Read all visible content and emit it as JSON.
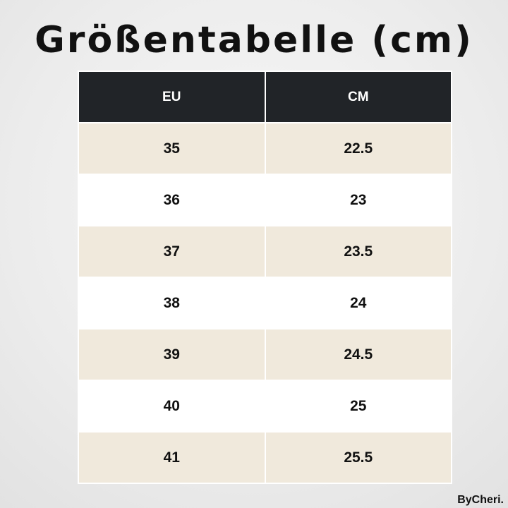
{
  "header": {
    "title": "Größentabelle (cm)"
  },
  "table": {
    "columns": [
      "EU",
      "CM"
    ],
    "rows": [
      [
        "35",
        "22.5"
      ],
      [
        "36",
        "23"
      ],
      [
        "37",
        "23.5"
      ],
      [
        "38",
        "24"
      ],
      [
        "39",
        "24.5"
      ],
      [
        "40",
        "25"
      ],
      [
        "41",
        "25.5"
      ]
    ]
  },
  "footer": {
    "brand": "ByCheri."
  }
}
